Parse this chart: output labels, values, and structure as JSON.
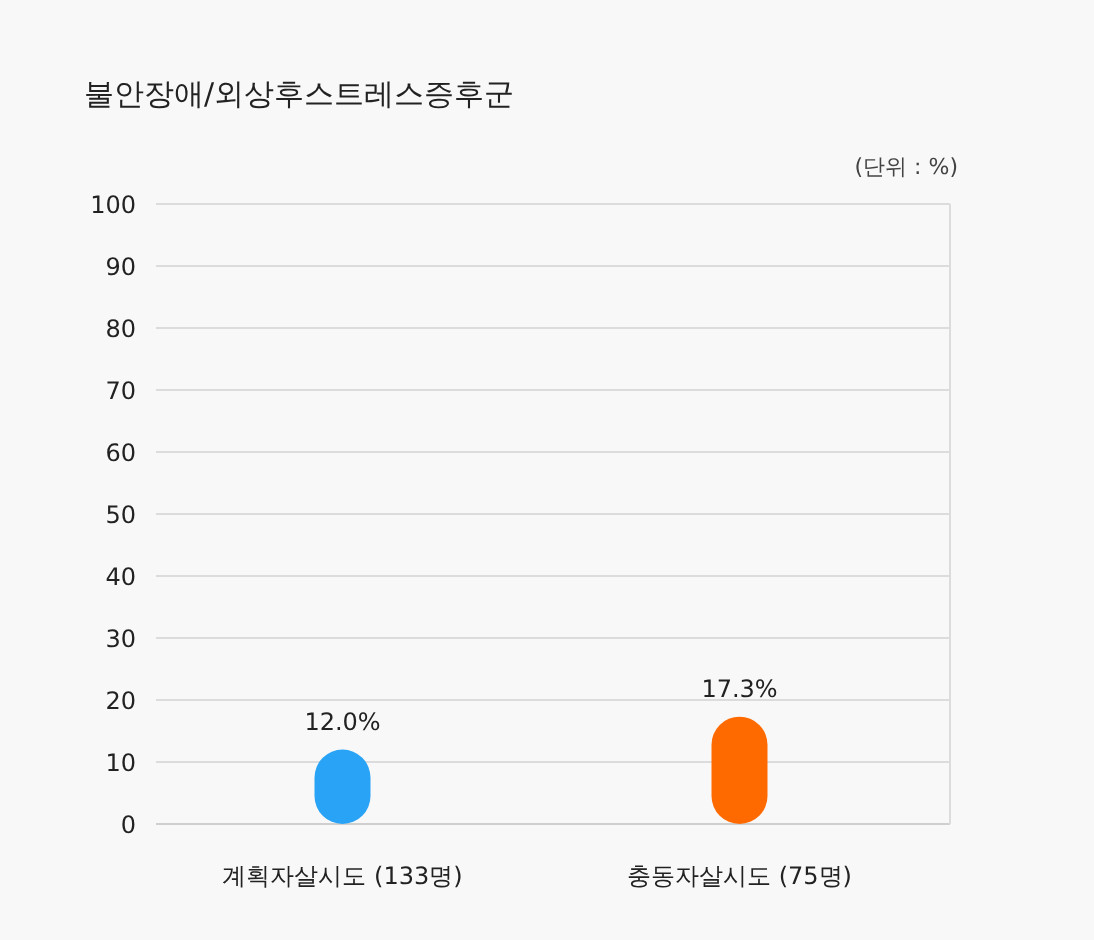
{
  "chart_data": {
    "type": "bar",
    "title": "불안장애/외상후스트레스증후군",
    "annotations": [
      "(단위 : %)"
    ],
    "categories": [
      "계획자살시도 (133명)",
      "충동자살시도 (75명)"
    ],
    "values": [
      12.0,
      17.3
    ],
    "colors": [
      "#29a3f5",
      "#ff6a00"
    ],
    "value_labels": [
      "12.0%",
      "17.3%"
    ],
    "ylim": [
      0,
      100
    ],
    "yticks": [
      0,
      10,
      20,
      30,
      40,
      50,
      60,
      70,
      80,
      90,
      100
    ],
    "grid": "y"
  }
}
